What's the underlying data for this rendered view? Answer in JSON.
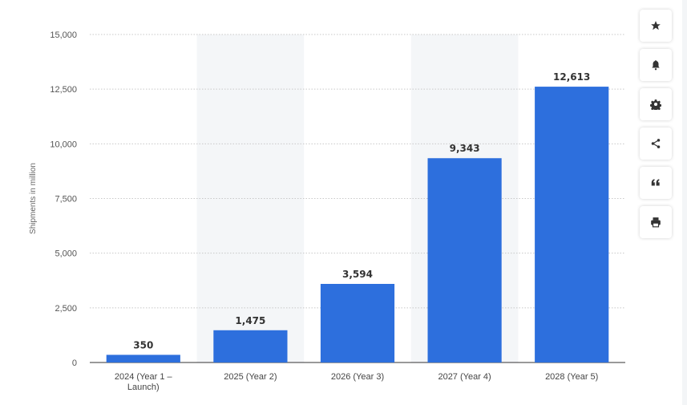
{
  "chart_data": {
    "type": "bar",
    "categories": [
      [
        "2024 (Year 1 –",
        "Launch)"
      ],
      [
        "2025 (Year 2)"
      ],
      [
        "2026 (Year 3)"
      ],
      [
        "2027 (Year 4)"
      ],
      [
        "2028 (Year 5)"
      ]
    ],
    "values": [
      350,
      1475,
      3594,
      9343,
      12613
    ],
    "value_labels": [
      "350",
      "1,475",
      "3,594",
      "9,343",
      "12,613"
    ],
    "ylabel": "Shipments in million",
    "ylim": [
      0,
      15000
    ],
    "yticks": [
      0,
      2500,
      5000,
      7500,
      10000,
      12500,
      15000
    ],
    "ytick_labels": [
      "0",
      "2,500",
      "5,000",
      "7,500",
      "10,000",
      "12,500",
      "15,000"
    ],
    "grid": true,
    "bar_color": "#2d6fdd",
    "alternate_band_color": "#f4f6f8"
  },
  "toolbar": {
    "buttons": [
      "star-icon",
      "bell-icon",
      "gear-icon",
      "share-icon",
      "quote-icon",
      "print-icon"
    ]
  }
}
